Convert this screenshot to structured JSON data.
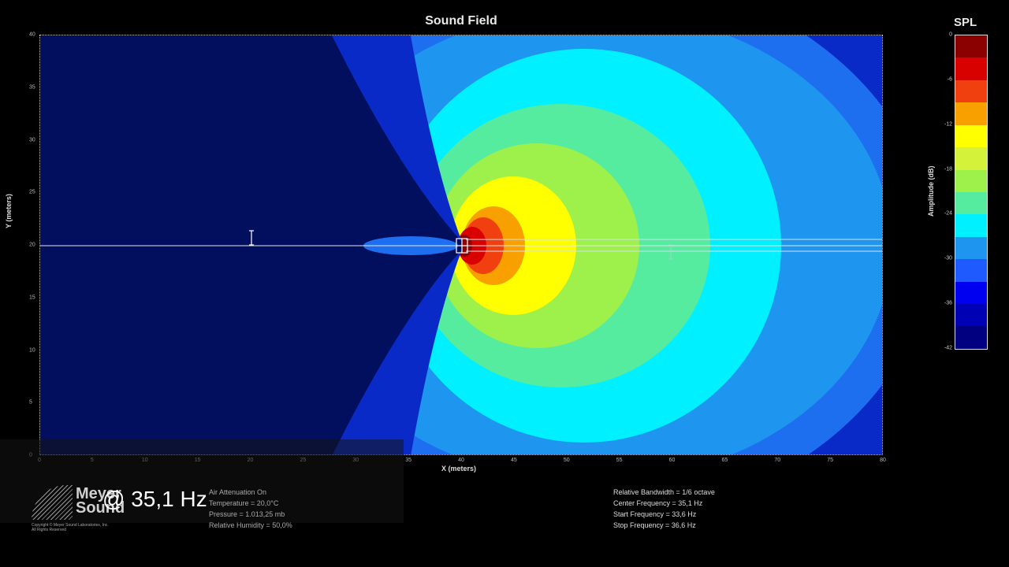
{
  "plot": {
    "title": "Sound Field",
    "xlabel": "X (meters)",
    "ylabel": "Y (meters)",
    "x_ticks": [
      "0",
      "5",
      "10",
      "15",
      "20",
      "25",
      "30",
      "35",
      "40",
      "45",
      "50",
      "55",
      "60",
      "65",
      "70",
      "75",
      "80"
    ],
    "y_ticks": [
      "40",
      "35",
      "30",
      "25",
      "20",
      "15",
      "10",
      "5",
      "0"
    ]
  },
  "colorbar": {
    "title": "SPL",
    "label": "Amplitude (dB)",
    "ticks": [
      "0",
      "-6",
      "-12",
      "-18",
      "-24",
      "-30",
      "-36",
      "-42"
    ],
    "colors": [
      "#8b0000",
      "#d90000",
      "#f04010",
      "#f7a000",
      "#ffff00",
      "#d4f23a",
      "#9ef04a",
      "#55eca0",
      "#00f0ff",
      "#1e96f0",
      "#1e5aff",
      "#0000f0",
      "#0000b4",
      "#000080"
    ]
  },
  "caption": {
    "frequency": "@ 35,1 Hz"
  },
  "logo": {
    "brand_line1": "Meyer",
    "brand_line2": "Sound",
    "copyright_line1": "Copyright © Meyer Sound Laboratories, Inc.",
    "copyright_line2": "All Rights Reserved"
  },
  "atmosphere": {
    "line1": "Air Attenuation On",
    "line2": "Temperature = 20,0°C",
    "line3": "Pressure = 1.013,25 mb",
    "line4": "Relative Humidity = 50,0%"
  },
  "analysis": {
    "line1": "Relative Bandwidth = 1/6 octave",
    "line2": "Center Frequency = 35,1 Hz",
    "line3": "Start Frequency = 33,6 Hz",
    "line4": "Stop Frequency = 36,6 Hz"
  },
  "field_colors": {
    "background": "#020f5e",
    "ring1": "#0a2ac8",
    "ring2": "#1e6ef0",
    "ring3": "#1e96f0",
    "ring4": "#00f0ff",
    "ring5": "#55eca0",
    "ring6": "#9ef04a",
    "ring7": "#ffff00",
    "ring8": "#f7a000",
    "ring9": "#f04010",
    "ring10": "#d90000",
    "core": "#8b0000"
  }
}
